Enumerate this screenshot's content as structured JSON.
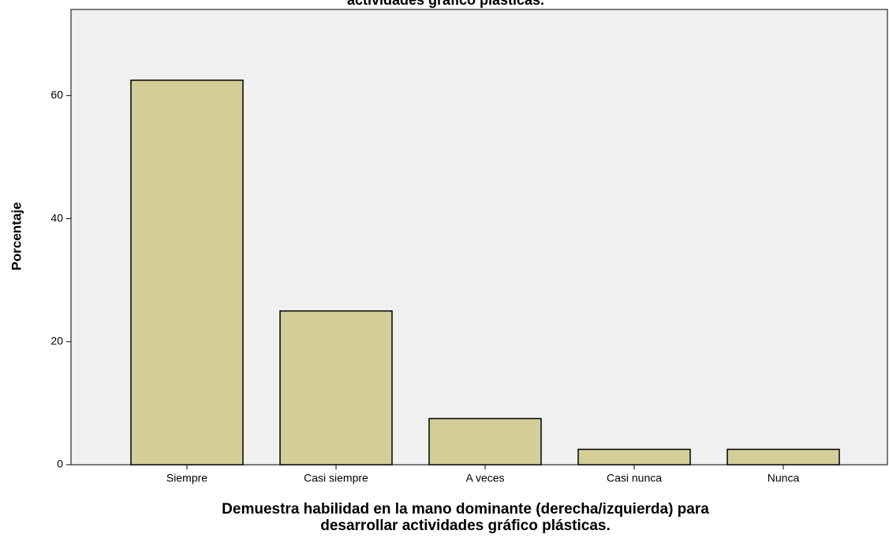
{
  "chart_data": {
    "type": "bar",
    "title": "actividades gráfico plásticas.",
    "ylabel": "Porcentaje",
    "xlabel": [
      "Demuestra habilidad en la mano dominante (derecha/izquierda) para",
      "desarrollar actividades gráfico plásticas."
    ],
    "categories": [
      "Siempre",
      "Casi siempre",
      "A veces",
      "Casi nunca",
      "Nunca"
    ],
    "values": [
      62.5,
      25,
      7.5,
      2.5,
      2.5
    ],
    "color": "#d3ce97",
    "ylim": [
      0,
      74
    ],
    "yticks": [
      0,
      20,
      40,
      60
    ],
    "grid": false
  }
}
